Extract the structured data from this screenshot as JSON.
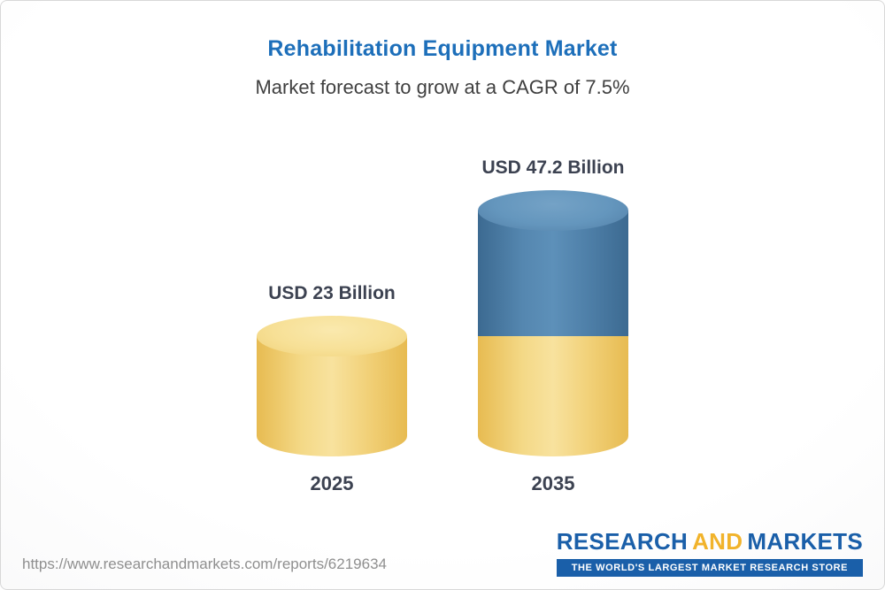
{
  "chart_data": {
    "type": "bar",
    "style": "3d-cylinder",
    "title": "Rehabilitation Equipment Market",
    "subtitle": "Market forecast to grow at a CAGR of 7.5%",
    "cagr_percent": 7.5,
    "unit": "USD Billion",
    "categories": [
      "2025",
      "2035"
    ],
    "totals": [
      23,
      47.2
    ],
    "value_labels": [
      "USD 23 Billion",
      "USD 47.2 Billion"
    ],
    "series": [
      {
        "name": "base-market",
        "color": "#F2CE68",
        "values": [
          23,
          23
        ]
      },
      {
        "name": "forecast-growth",
        "color": "#4C7CA4",
        "values": [
          0,
          24.2
        ]
      }
    ],
    "ylim": [
      0,
      50
    ],
    "grid": false,
    "legend": "none"
  },
  "footer": {
    "url": "https://www.researchandmarkets.com/reports/6219634",
    "logo": {
      "research": "RESEARCH",
      "and": "AND",
      "markets": "MARKETS",
      "tagline": "THE WORLD'S LARGEST MARKET RESEARCH STORE"
    }
  },
  "colors": {
    "title_blue": "#1d6fba",
    "label_dark": "#3c4251",
    "cylinder_yellow": "#F2CE68",
    "cylinder_blue": "#4C7CA4",
    "logo_blue": "#1a5fa9",
    "logo_gold": "#f1b32b",
    "url_gray": "#8f8f8f"
  }
}
